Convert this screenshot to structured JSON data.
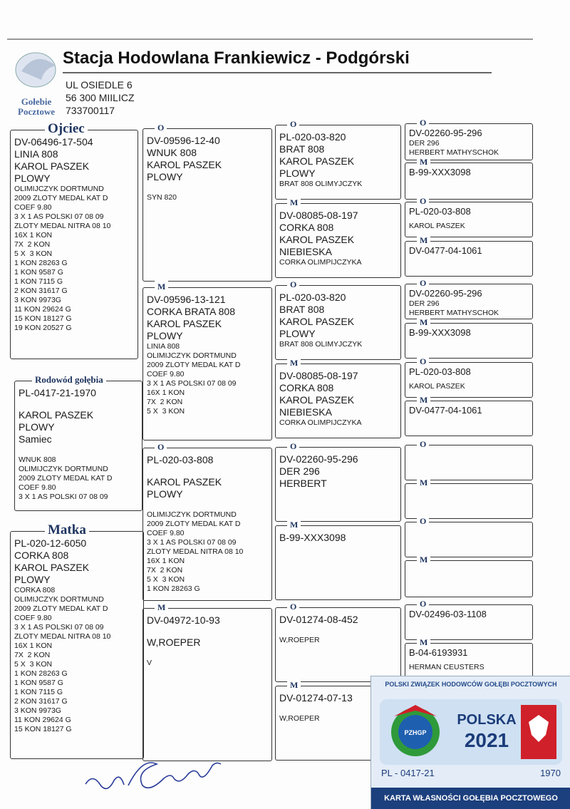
{
  "header": {
    "title": "Stacja Hodowlana Frankiewicz - Podgórski",
    "address": [
      "UL OSIEDLE 6",
      "56 300 MIILICZ",
      "733700117"
    ],
    "logo": [
      "Gołebie",
      "Pocztowe"
    ]
  },
  "boxes": [
    {
      "label": "Ojciec",
      "lines": [
        "DV-06496-17-504",
        "LINIA 808",
        "KAROL PASZEK",
        "PLOWY",
        "OLIMIJCZYK DORTMUND",
        "2009 ZLOTY MEDAL KAT D",
        "COEF 9.80",
        "3 X 1 AS POLSKI 07 08 09",
        "ZLOTY MEDAL NITRA 08 10",
        "16X 1 KON",
        "7X  2 KON",
        "5 X  3 KON",
        "1 KON 28263 G",
        "1 KON 9587 G",
        "1 KON 7115 G",
        "2 KON 31617 G",
        "3 KON 9973G",
        "11 KON 29624 G",
        "15 KON 18127 G",
        "19 KON 20527 G"
      ]
    },
    {
      "label": "Rodowód gołębia",
      "lines": [
        "PL-0417-21-1970",
        "KAROL PASZEK",
        "PLOWY",
        "Samiec",
        "WNUK 808",
        "OLIMIJCZYK DORTMUND",
        "2009 ZLOTY MEDAL KAT D",
        "COEF 9.80",
        "3 X 1 AS POLSKI 07 08 09"
      ]
    },
    {
      "label": "Matka",
      "lines": [
        "PL-020-12-6050",
        "CORKA 808",
        "KAROL PASZEK",
        "PLOWY",
        "CORKA 808",
        "OLIMIJCZYK DORTMUND",
        "2009 ZLOTY MEDAL KAT D",
        "COEF 9.80",
        "3 X 1 AS POLSKI 07 08 09",
        "ZLOTY MEDAL NITRA 08 10",
        "16X 1 KON",
        "7X  2 KON",
        "5 X  3 KON",
        "1 KON 28263 G",
        "1 KON 9587 G",
        "1 KON 7115 G",
        "2 KON 31617 G",
        "3 KON 9973G",
        "11 KON 29624 G",
        "15 KON 18127 G"
      ]
    },
    {
      "label": "O",
      "lines": [
        "DV-09596-12-40",
        "WNUK 808",
        "KAROL PASZEK",
        "PLOWY",
        "SYN 820"
      ]
    },
    {
      "label": "M",
      "lines": [
        "DV-09596-13-121",
        "CORKA BRATA 808",
        "KAROL PASZEK",
        "PLOWY",
        "LINIA 808",
        "OLIMIJCZYK DORTMUND",
        "2009 ZLOTY MEDAL KAT D",
        "COEF 9.80",
        "3 X 1 AS POLSKI 07 08 09",
        "16X 1 KON",
        "7X  2 KON",
        "5 X  3 KON"
      ]
    },
    {
      "label": "O",
      "lines": [
        "PL-020-03-808",
        "KAROL PASZEK",
        "PLOWY",
        "OLIMIJCZYK DORTMUND",
        "2009 ZLOTY MEDAL KAT D",
        "COEF 9.80",
        "3 X 1 AS POLSKI 07 08 09",
        "ZLOTY MEDAL NITRA 08 10",
        "16X 1 KON",
        "7X  2 KON",
        "5 X  3 KON",
        "1 KON 28263 G"
      ]
    },
    {
      "label": "M",
      "lines": [
        "DV-04972-10-93",
        "W,ROEPER",
        "V"
      ]
    },
    {
      "label": "O",
      "lines": [
        "PL-020-03-820",
        "BRAT 808",
        "KAROL PASZEK",
        "PLOWY",
        "BRAT 808 OLIMYJCZYK"
      ]
    },
    {
      "label": "M",
      "lines": [
        "DV-08085-08-197",
        "CORKA 808",
        "KAROL PASZEK",
        "NIEBIESKA",
        "CORKA OLIMPIJCZYKA"
      ]
    },
    {
      "label": "O",
      "lines": [
        "PL-020-03-820",
        "BRAT 808",
        "KAROL PASZEK",
        "PLOWY",
        "BRAT 808 OLIMYJCZYK"
      ]
    },
    {
      "label": "M",
      "lines": [
        "DV-08085-08-197",
        "CORKA 808",
        "KAROL PASZEK",
        "NIEBIESKA",
        "CORKA OLIMPIJCZYKA"
      ]
    },
    {
      "label": "O",
      "lines": [
        "DV-02260-95-296",
        "DER 296",
        "HERBERT"
      ]
    },
    {
      "label": "M",
      "lines": [
        "B-99-XXX3098"
      ]
    },
    {
      "label": "O",
      "lines": [
        "DV-01274-08-452",
        "W,ROEPER"
      ]
    },
    {
      "label": "M",
      "lines": [
        "DV-01274-07-13",
        "W,ROEPER"
      ]
    },
    {
      "label": "O",
      "lines": [
        "DV-02260-95-296",
        "DER 296",
        "HERBERT MATHYSCHOK"
      ]
    },
    {
      "label": "M",
      "lines": [
        "B-99-XXX3098"
      ]
    },
    {
      "label": "O",
      "lines": [
        "PL-020-03-808",
        "KAROL PASZEK"
      ]
    },
    {
      "label": "M",
      "lines": [
        "DV-0477-04-1061"
      ]
    },
    {
      "label": "O",
      "lines": [
        "DV-02260-95-296",
        "DER 296",
        "HERBERT MATHYSCHOK"
      ]
    },
    {
      "label": "M",
      "lines": [
        "B-99-XXX3098"
      ]
    },
    {
      "label": "O",
      "lines": [
        "PL-020-03-808",
        "KAROL PASZEK"
      ]
    },
    {
      "label": "M",
      "lines": [
        "DV-0477-04-1061"
      ]
    },
    {
      "label": "O",
      "lines": []
    },
    {
      "label": "M",
      "lines": []
    },
    {
      "label": "O",
      "lines": []
    },
    {
      "label": "M",
      "lines": []
    },
    {
      "label": "O",
      "lines": [
        "DV-02496-03-1108"
      ]
    },
    {
      "label": "M",
      "lines": [
        "B-04-6193931",
        "HERMAN CEUSTERS"
      ]
    }
  ],
  "card": {
    "union": "POLSKI ZWIĄZEK HODOWCÓW GOŁĘBI POCZTOWYCH",
    "emblem": "PZHGP",
    "country": "POLSKA",
    "year": "2021",
    "ring": "PL - 0417-21",
    "number": "1970",
    "footer": "KARTA WŁASNOŚCI GOŁĘBIA POCZTOWEGO"
  }
}
